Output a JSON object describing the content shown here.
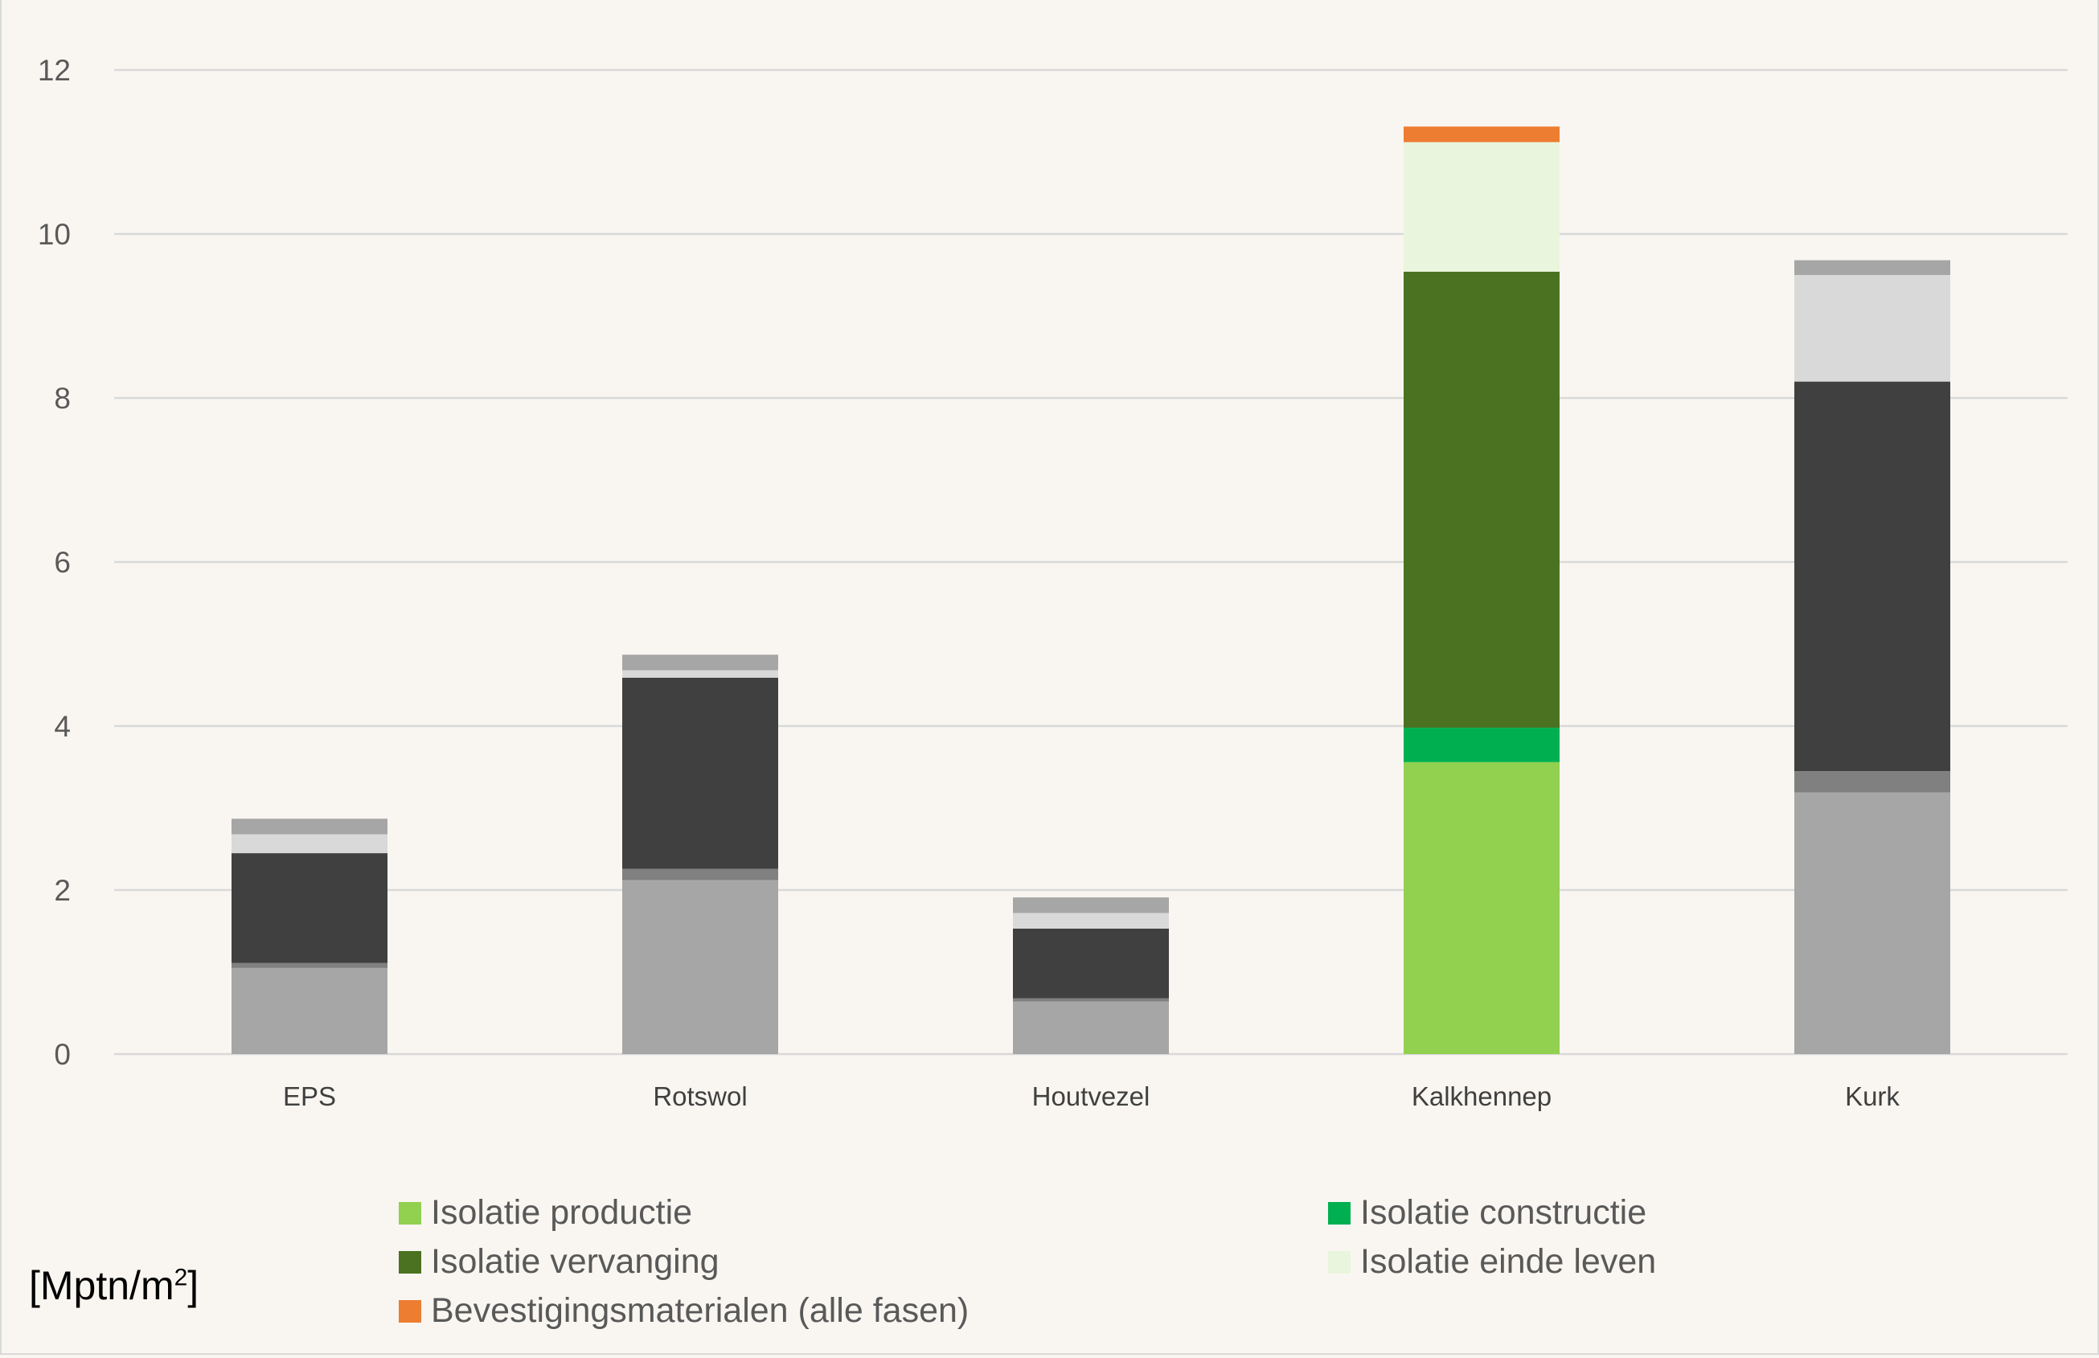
{
  "chart_data": {
    "type": "bar",
    "stacked": true,
    "title": "",
    "xlabel": "",
    "ylabel": "[Mptn/m2]",
    "ylabel_parts": {
      "base": "[Mptn/m",
      "sup": "2",
      "end": "]"
    },
    "ylim": [
      0,
      12
    ],
    "yticks": [
      0,
      2,
      4,
      6,
      8,
      10,
      12
    ],
    "grid": true,
    "legend_position": "bottom",
    "categories": [
      "EPS",
      "Rotswol",
      "Houtvezel",
      "Kalkhennep",
      "Kurk"
    ],
    "highlighted_category": "Kalkhennep",
    "series": [
      {
        "name": "Isolatie productie",
        "color": "#92d050",
        "muted_color": "#a6a6a6",
        "values": [
          1.05,
          2.12,
          0.64,
          3.56,
          3.19
        ]
      },
      {
        "name": "Isolatie constructie",
        "color": "#00b050",
        "muted_color": "#808080",
        "values": [
          0.06,
          0.14,
          0.04,
          0.42,
          0.26
        ]
      },
      {
        "name": "Isolatie vervanging",
        "color": "#4a7220",
        "muted_color": "#404040",
        "values": [
          1.34,
          2.33,
          0.85,
          5.56,
          4.75
        ]
      },
      {
        "name": "Isolatie einde leven",
        "color": "#e9f5dc",
        "muted_color": "#d9d9d9",
        "values": [
          0.23,
          0.09,
          0.19,
          1.58,
          1.3
        ]
      },
      {
        "name": "Bevestigingsmaterialen (alle fasen)",
        "color": "#ed7d31",
        "muted_color": "#a6a6a6",
        "values": [
          0.19,
          0.19,
          0.19,
          0.19,
          0.18
        ]
      }
    ]
  }
}
